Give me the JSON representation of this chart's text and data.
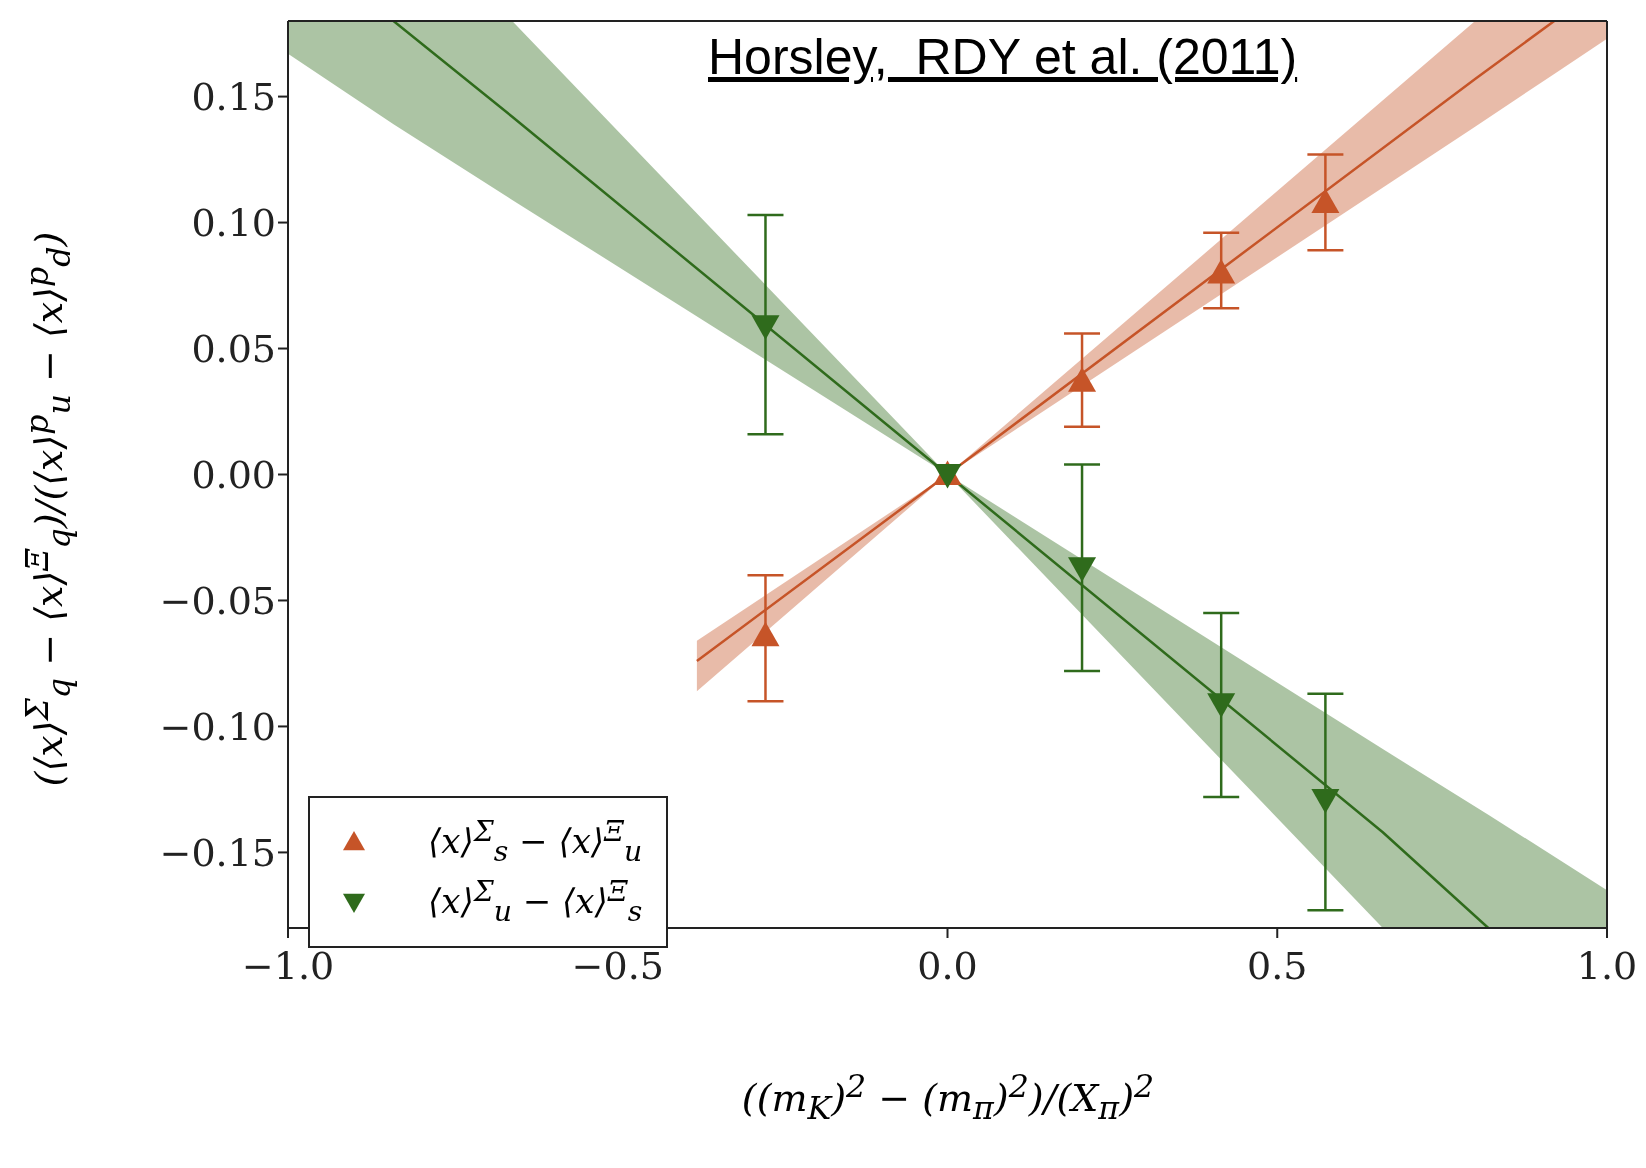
{
  "chart_data": {
    "type": "scatter",
    "xlabel": "((m$_{K}$)$^{2}$ − (m$_{π}$)$^{2}$)/(X$_{π}$)$^{2}$",
    "ylabel": "(⟨x⟩$^{Σ}$$_{q}$ − ⟨x⟩$^{Ξ}$$_{q}$)/(⟨x⟩$^{p}$$_{u}$ − ⟨x⟩$^{p}$$_{d}$)",
    "annotations": [
      "Horsley,  RDY et al. (2011)"
    ],
    "xlim": [
      -1,
      1
    ],
    "ylim": [
      -0.18,
      0.18
    ],
    "xticks": [
      {
        "value": -1,
        "label": "−1.0"
      },
      {
        "value": -0.5,
        "label": "−0.5"
      },
      {
        "value": 0,
        "label": "0.0"
      },
      {
        "value": 0.5,
        "label": "0.5"
      },
      {
        "value": 1,
        "label": "1.0"
      }
    ],
    "yticks": [
      {
        "value": -0.15,
        "label": "−0.15"
      },
      {
        "value": -0.1,
        "label": "−0.10"
      },
      {
        "value": -0.05,
        "label": "−0.05"
      },
      {
        "value": 0,
        "label": "0.00"
      },
      {
        "value": 0.05,
        "label": "0.05"
      },
      {
        "value": 0.1,
        "label": "0.10"
      },
      {
        "value": 0.15,
        "label": "0.15"
      }
    ],
    "grid": false,
    "legend": "bottom left",
    "series": [
      {
        "type": "line",
        "color": "#c65428",
        "marker": "none",
        "x": [
          -0.38,
          0,
          0.8,
          0.92,
          1
        ],
        "values": [
          -0.074,
          0,
          0.157,
          0.18,
          null
        ],
        "lower": [
          -0.086,
          0,
          0.138,
          0.159,
          0.173
        ],
        "upper": [
          -0.066,
          0,
          0.18,
          0.18,
          0.18
        ]
      },
      {
        "type": "line",
        "color": "#2f6b1c",
        "marker": "none",
        "x": [
          -1,
          -0.84,
          -0.66,
          0,
          0.66,
          0.82,
          1
        ],
        "values": [
          null,
          0.18,
          0.142,
          0,
          -0.142,
          -0.18,
          null
        ],
        "lower": [
          0.167,
          0.139,
          0.109,
          0,
          -0.18,
          -0.18,
          -0.18
        ],
        "upper": [
          0.18,
          0.18,
          0.18,
          0,
          -0.109,
          -0.135,
          -0.165
        ]
      },
      {
        "name": "⟨x⟩$^{Σ}$$_{s}$ − ⟨x⟩$^{Ξ}$$_{u}$",
        "color": "#c65428",
        "marker": "triangle",
        "x": [
          -0.276,
          0,
          0.204,
          0.415,
          0.573
        ],
        "values": [
          -0.064,
          0,
          0.037,
          0.08,
          0.108
        ],
        "errors": [
          [
            -0.09,
            -0.04
          ],
          null,
          [
            0.019,
            0.056
          ],
          [
            0.066,
            0.096
          ],
          [
            0.089,
            0.127
          ]
        ]
      },
      {
        "name": "⟨x⟩$^{Σ}$$_{u}$ − ⟨x⟩$^{Ξ}$$_{s}$",
        "color": "#2f6b1c",
        "marker": "triangle-down",
        "x": [
          -0.276,
          0,
          0.204,
          0.415,
          0.573
        ],
        "values": [
          0.059,
          0,
          -0.037,
          -0.091,
          -0.129
        ],
        "errors": [
          [
            0.016,
            0.103
          ],
          null,
          [
            -0.078,
            0.004
          ],
          [
            -0.128,
            -0.055
          ],
          [
            -0.173,
            -0.087
          ]
        ]
      }
    ]
  }
}
